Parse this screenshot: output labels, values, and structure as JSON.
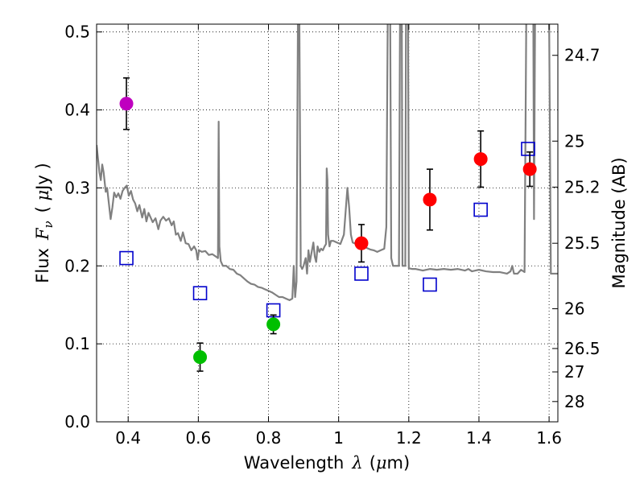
{
  "chart_data": {
    "type": "scatter",
    "xlabel": "Wavelength",
    "xlabel_symbol": "λ",
    "xlabel_unit_prefix": "(",
    "xlabel_unit_mu": "μ",
    "xlabel_unit_rest": "m)",
    "ylabel": "Flux",
    "ylabel_symbol": "F",
    "ylabel_subscript": "ν",
    "ylabel_unit_prefix": "( ",
    "ylabel_unit_mu": "μ",
    "ylabel_unit_rest": "Jy )",
    "y2label": "Magnitude (AB)",
    "xlim": [
      0.31,
      1.625
    ],
    "ylim": [
      0.0,
      0.51
    ],
    "grid": true,
    "x_ticks": [
      "0.4",
      "0.6",
      "0.8",
      "1",
      "1.2",
      "1.4",
      "1.6"
    ],
    "x_tick_values": [
      0.4,
      0.6,
      0.8,
      1.0,
      1.2,
      1.4,
      1.6
    ],
    "y_ticks": [
      "0.0",
      "0.1",
      "0.2",
      "0.3",
      "0.4",
      "0.5"
    ],
    "y_tick_values": [
      0.0,
      0.1,
      0.2,
      0.3,
      0.4,
      0.5
    ],
    "y2_ticks": [
      {
        "label": "24.7",
        "flux": 0.47
      },
      {
        "label": "25",
        "flux": 0.36
      },
      {
        "label": "25.2",
        "flux": 0.301
      },
      {
        "label": "25.5",
        "flux": 0.229
      },
      {
        "label": "26",
        "flux": 0.145
      },
      {
        "label": "26.5",
        "flux": 0.094
      },
      {
        "label": "27",
        "flux": 0.064
      },
      {
        "label": "28",
        "flux": 0.026
      }
    ],
    "series": [
      {
        "name": "violet photometry",
        "kind": "point-errorbar",
        "color": "#bf00bf",
        "points": [
          {
            "x": 0.395,
            "y": 0.408,
            "err": 0.033
          }
        ]
      },
      {
        "name": "green photometry",
        "kind": "point-errorbar",
        "color": "#00bf00",
        "points": [
          {
            "x": 0.605,
            "y": 0.083,
            "err": 0.018
          },
          {
            "x": 0.814,
            "y": 0.125,
            "err": 0.012
          }
        ]
      },
      {
        "name": "red photometry",
        "kind": "point-errorbar",
        "color": "#ff0000",
        "points": [
          {
            "x": 1.065,
            "y": 0.229,
            "err": 0.024
          },
          {
            "x": 1.26,
            "y": 0.285,
            "err": 0.039
          },
          {
            "x": 1.405,
            "y": 0.337,
            "err": 0.036
          },
          {
            "x": 1.545,
            "y": 0.324,
            "err": 0.022
          }
        ]
      },
      {
        "name": "model photometry",
        "kind": "open-square",
        "color": "#0000cc",
        "points": [
          {
            "x": 0.395,
            "y": 0.21
          },
          {
            "x": 0.605,
            "y": 0.165
          },
          {
            "x": 0.814,
            "y": 0.143
          },
          {
            "x": 1.065,
            "y": 0.19
          },
          {
            "x": 1.26,
            "y": 0.176
          },
          {
            "x": 1.405,
            "y": 0.272
          },
          {
            "x": 1.54,
            "y": 0.35
          }
        ]
      },
      {
        "name": "model spectrum",
        "kind": "line",
        "color": "#808080",
        "points": [
          [
            0.31,
            0.355
          ],
          [
            0.318,
            0.32
          ],
          [
            0.322,
            0.31
          ],
          [
            0.326,
            0.33
          ],
          [
            0.33,
            0.32
          ],
          [
            0.336,
            0.295
          ],
          [
            0.34,
            0.3
          ],
          [
            0.345,
            0.28
          ],
          [
            0.35,
            0.26
          ],
          [
            0.355,
            0.275
          ],
          [
            0.36,
            0.294
          ],
          [
            0.366,
            0.288
          ],
          [
            0.372,
            0.293
          ],
          [
            0.378,
            0.286
          ],
          [
            0.384,
            0.296
          ],
          [
            0.39,
            0.3
          ],
          [
            0.396,
            0.303
          ],
          [
            0.402,
            0.29
          ],
          [
            0.408,
            0.296
          ],
          [
            0.414,
            0.285
          ],
          [
            0.42,
            0.28
          ],
          [
            0.426,
            0.27
          ],
          [
            0.432,
            0.278
          ],
          [
            0.44,
            0.262
          ],
          [
            0.446,
            0.273
          ],
          [
            0.452,
            0.257
          ],
          [
            0.458,
            0.268
          ],
          [
            0.464,
            0.262
          ],
          [
            0.47,
            0.256
          ],
          [
            0.478,
            0.261
          ],
          [
            0.486,
            0.247
          ],
          [
            0.492,
            0.258
          ],
          [
            0.5,
            0.263
          ],
          [
            0.508,
            0.258
          ],
          [
            0.516,
            0.261
          ],
          [
            0.524,
            0.252
          ],
          [
            0.53,
            0.257
          ],
          [
            0.536,
            0.24
          ],
          [
            0.542,
            0.242
          ],
          [
            0.55,
            0.232
          ],
          [
            0.556,
            0.243
          ],
          [
            0.564,
            0.229
          ],
          [
            0.572,
            0.228
          ],
          [
            0.58,
            0.22
          ],
          [
            0.588,
            0.225
          ],
          [
            0.594,
            0.22
          ],
          [
            0.598,
            0.208
          ],
          [
            0.602,
            0.22
          ],
          [
            0.61,
            0.218
          ],
          [
            0.62,
            0.219
          ],
          [
            0.63,
            0.214
          ],
          [
            0.64,
            0.215
          ],
          [
            0.65,
            0.212
          ],
          [
            0.656,
            0.21
          ],
          [
            0.658,
            0.385
          ],
          [
            0.66,
            0.225
          ],
          [
            0.664,
            0.206
          ],
          [
            0.67,
            0.2
          ],
          [
            0.68,
            0.2
          ],
          [
            0.69,
            0.196
          ],
          [
            0.7,
            0.195
          ],
          [
            0.71,
            0.19
          ],
          [
            0.72,
            0.188
          ],
          [
            0.73,
            0.184
          ],
          [
            0.74,
            0.18
          ],
          [
            0.75,
            0.177
          ],
          [
            0.76,
            0.176
          ],
          [
            0.77,
            0.173
          ],
          [
            0.78,
            0.172
          ],
          [
            0.79,
            0.17
          ],
          [
            0.8,
            0.168
          ],
          [
            0.81,
            0.166
          ],
          [
            0.82,
            0.163
          ],
          [
            0.83,
            0.16
          ],
          [
            0.84,
            0.16
          ],
          [
            0.85,
            0.158
          ],
          [
            0.86,
            0.156
          ],
          [
            0.868,
            0.158
          ],
          [
            0.872,
            0.2
          ],
          [
            0.876,
            0.16
          ],
          [
            0.88,
            0.18
          ],
          [
            0.884,
            0.52
          ],
          [
            0.888,
            0.52
          ],
          [
            0.892,
            0.2
          ],
          [
            0.896,
            0.196
          ],
          [
            0.9,
            0.2
          ],
          [
            0.906,
            0.21
          ],
          [
            0.91,
            0.19
          ],
          [
            0.914,
            0.22
          ],
          [
            0.918,
            0.205
          ],
          [
            0.922,
            0.215
          ],
          [
            0.928,
            0.23
          ],
          [
            0.932,
            0.212
          ],
          [
            0.936,
            0.205
          ],
          [
            0.94,
            0.225
          ],
          [
            0.945,
            0.218
          ],
          [
            0.95,
            0.222
          ],
          [
            0.955,
            0.22
          ],
          [
            0.96,
            0.225
          ],
          [
            0.964,
            0.228
          ],
          [
            0.966,
            0.325
          ],
          [
            0.968,
            0.31
          ],
          [
            0.97,
            0.24
          ],
          [
            0.974,
            0.225
          ],
          [
            0.978,
            0.232
          ],
          [
            0.985,
            0.232
          ],
          [
            0.995,
            0.23
          ],
          [
            1.005,
            0.228
          ],
          [
            1.015,
            0.24
          ],
          [
            1.02,
            0.27
          ],
          [
            1.025,
            0.3
          ],
          [
            1.03,
            0.275
          ],
          [
            1.035,
            0.24
          ],
          [
            1.04,
            0.23
          ],
          [
            1.05,
            0.228
          ],
          [
            1.06,
            0.225
          ],
          [
            1.07,
            0.226
          ],
          [
            1.08,
            0.223
          ],
          [
            1.09,
            0.221
          ],
          [
            1.1,
            0.22
          ],
          [
            1.11,
            0.218
          ],
          [
            1.12,
            0.22
          ],
          [
            1.13,
            0.222
          ],
          [
            1.136,
            0.25
          ],
          [
            1.14,
            0.52
          ],
          [
            1.147,
            0.52
          ],
          [
            1.15,
            0.21
          ],
          [
            1.155,
            0.2
          ],
          [
            1.16,
            0.2
          ],
          [
            1.172,
            0.2
          ],
          [
            1.175,
            0.52
          ],
          [
            1.18,
            0.52
          ],
          [
            1.182,
            0.2
          ],
          [
            1.19,
            0.2
          ],
          [
            1.192,
            0.52
          ],
          [
            1.198,
            0.52
          ],
          [
            1.2,
            0.197
          ],
          [
            1.21,
            0.196
          ],
          [
            1.22,
            0.196
          ],
          [
            1.24,
            0.194
          ],
          [
            1.26,
            0.196
          ],
          [
            1.28,
            0.195
          ],
          [
            1.3,
            0.196
          ],
          [
            1.32,
            0.195
          ],
          [
            1.34,
            0.196
          ],
          [
            1.36,
            0.194
          ],
          [
            1.37,
            0.196
          ],
          [
            1.38,
            0.193
          ],
          [
            1.39,
            0.194
          ],
          [
            1.4,
            0.195
          ],
          [
            1.42,
            0.193
          ],
          [
            1.44,
            0.192
          ],
          [
            1.46,
            0.192
          ],
          [
            1.48,
            0.19
          ],
          [
            1.49,
            0.193
          ],
          [
            1.495,
            0.2
          ],
          [
            1.5,
            0.19
          ],
          [
            1.51,
            0.19
          ],
          [
            1.52,
            0.195
          ],
          [
            1.53,
            0.192
          ],
          [
            1.535,
            0.52
          ],
          [
            1.538,
            0.52
          ],
          [
            1.545,
            0.52
          ],
          [
            1.55,
            0.52
          ],
          [
            1.555,
            0.52
          ],
          [
            1.557,
            0.26
          ],
          [
            1.56,
            0.52
          ],
          [
            1.565,
            0.52
          ],
          [
            1.57,
            0.52
          ],
          [
            1.58,
            0.52
          ],
          [
            1.59,
            0.52
          ],
          [
            1.6,
            0.52
          ],
          [
            1.605,
            0.19
          ],
          [
            1.625,
            0.19
          ]
        ]
      }
    ]
  }
}
